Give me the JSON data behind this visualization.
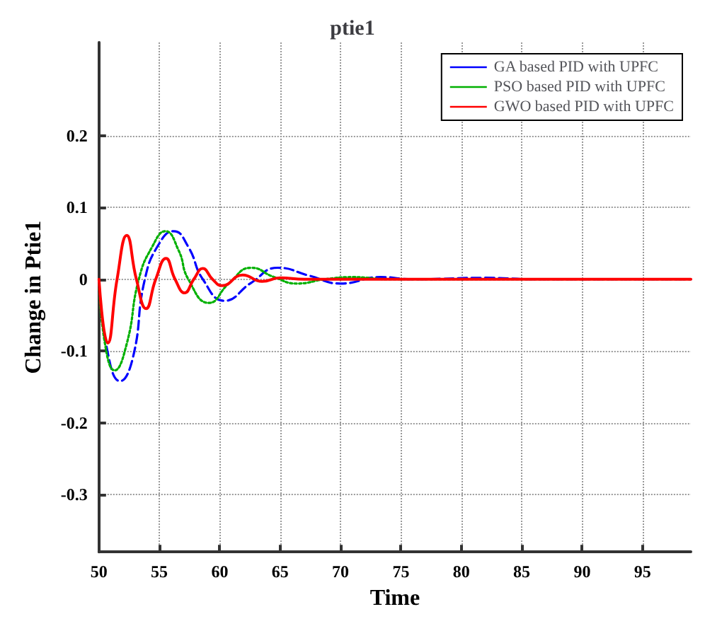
{
  "chart_data": {
    "type": "line",
    "title": "ptie1",
    "xlabel": "Time",
    "ylabel": "Change in Ptie1",
    "xlim": [
      50,
      99
    ],
    "xticks": [
      50,
      55,
      60,
      65,
      70,
      75,
      80,
      85,
      90,
      95
    ],
    "ylim": [
      -0.38,
      0.33
    ],
    "yticks": [
      -0.3,
      -0.2,
      -0.1,
      0,
      0.1,
      0.2
    ],
    "grid": true,
    "legend": "top right",
    "marker": "none",
    "series": [
      {
        "name": "GA based PID with UPFC",
        "color": "#0000ff",
        "line_style": "dashed",
        "x": [
          50,
          50.7,
          51.75,
          52.8,
          53.8,
          55,
          56.2,
          57.4,
          58.6,
          60.4,
          62.6,
          64.8,
          67.4,
          70,
          73.3,
          76,
          82,
          86,
          99
        ],
        "values": [
          0,
          -0.1,
          -0.142,
          -0.11,
          0,
          0.05,
          0.067,
          0.045,
          0,
          -0.03,
          -0.005,
          0.016,
          0.005,
          -0.006,
          0.003,
          0,
          0.002,
          0,
          0
        ]
      },
      {
        "name": "PSO based PID with UPFC",
        "color": "#00b000",
        "line_style": "dotted",
        "x": [
          50,
          50.5,
          51.3,
          52.3,
          53.3,
          54.4,
          55.5,
          56.6,
          57.4,
          59.1,
          60.8,
          62.6,
          64.5,
          66.4,
          68.7,
          71,
          74,
          99
        ],
        "values": [
          0,
          -0.09,
          -0.127,
          -0.09,
          0,
          0.045,
          0.067,
          0.04,
          0,
          -0.033,
          -0.005,
          0.016,
          0.003,
          -0.006,
          0,
          0.003,
          0,
          0
        ]
      },
      {
        "name": "GWO based PID with UPFC",
        "color": "#ff0000",
        "line_style": "solid",
        "x": [
          50,
          50.73,
          51.5,
          52.3,
          53.1,
          53.9,
          54.7,
          55.55,
          56.3,
          57.1,
          57.85,
          58.6,
          59.4,
          60.2,
          61.9,
          63.5,
          65,
          67,
          99
        ],
        "values": [
          0,
          -0.089,
          0,
          0.061,
          0,
          -0.041,
          0,
          0.029,
          0,
          -0.019,
          0,
          0.015,
          0,
          -0.009,
          0.006,
          -0.003,
          0.002,
          0,
          0
        ]
      }
    ]
  }
}
